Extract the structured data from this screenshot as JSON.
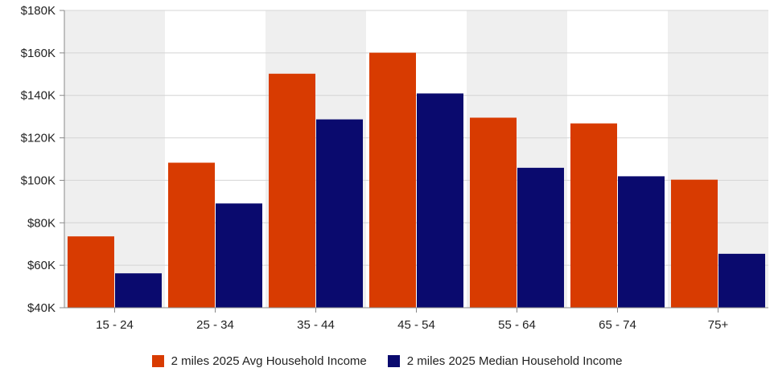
{
  "chart_data": {
    "type": "bar",
    "categories": [
      "15 - 24",
      "25 - 34",
      "35 - 44",
      "45 - 54",
      "55 - 64",
      "65 - 74",
      "75+"
    ],
    "series": [
      {
        "name": "2 miles 2025 Avg Household Income",
        "color": "#d83b01",
        "values": [
          73600,
          108300,
          150200,
          160100,
          129500,
          126800,
          100300
        ]
      },
      {
        "name": "2 miles 2025 Median Household Income",
        "color": "#0a0a6e",
        "values": [
          56200,
          89100,
          128700,
          140900,
          105900,
          101900,
          65400
        ]
      }
    ],
    "yticks": [
      "$40K",
      "$60K",
      "$80K",
      "$100K",
      "$120K",
      "$140K",
      "$160K",
      "$180K"
    ],
    "ylim": [
      40000,
      180000
    ],
    "grid": true,
    "band_colors": [
      "#efefef",
      "#ffffff"
    ],
    "legend_position": "bottom"
  }
}
